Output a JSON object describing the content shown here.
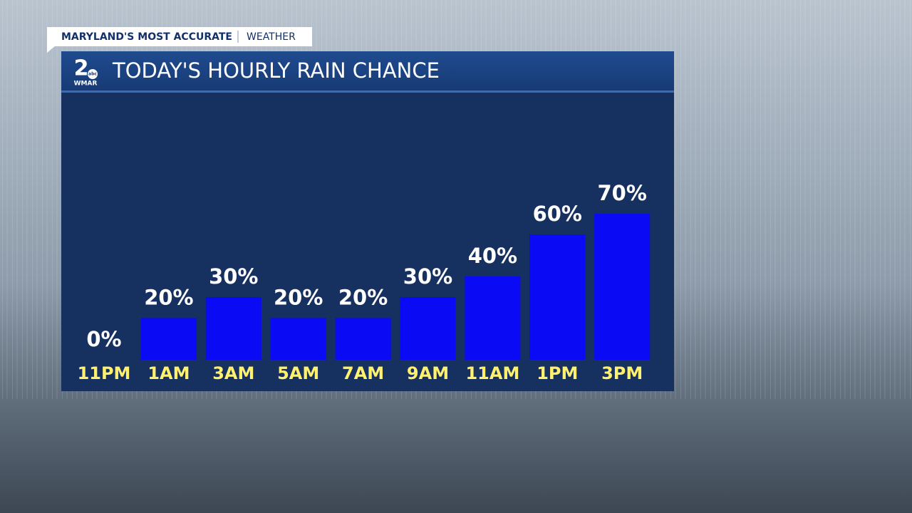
{
  "header": {
    "brand": "MARYLAND'S MOST ACCURATE",
    "section": "WEATHER"
  },
  "logo": {
    "number": "2",
    "network": "abc",
    "station": "WMAR"
  },
  "chart_data": {
    "type": "bar",
    "title": "TODAY'S HOURLY RAIN CHANCE",
    "categories": [
      "11PM",
      "1AM",
      "3AM",
      "5AM",
      "7AM",
      "9AM",
      "11AM",
      "1PM",
      "3PM"
    ],
    "values": [
      0,
      20,
      30,
      20,
      20,
      30,
      40,
      60,
      70
    ],
    "value_labels": [
      "0%",
      "20%",
      "30%",
      "20%",
      "20%",
      "30%",
      "40%",
      "60%",
      "70%"
    ],
    "color": "#0a0af5",
    "category_color": "#fff06e",
    "value_label_color": "#ffffff"
  }
}
